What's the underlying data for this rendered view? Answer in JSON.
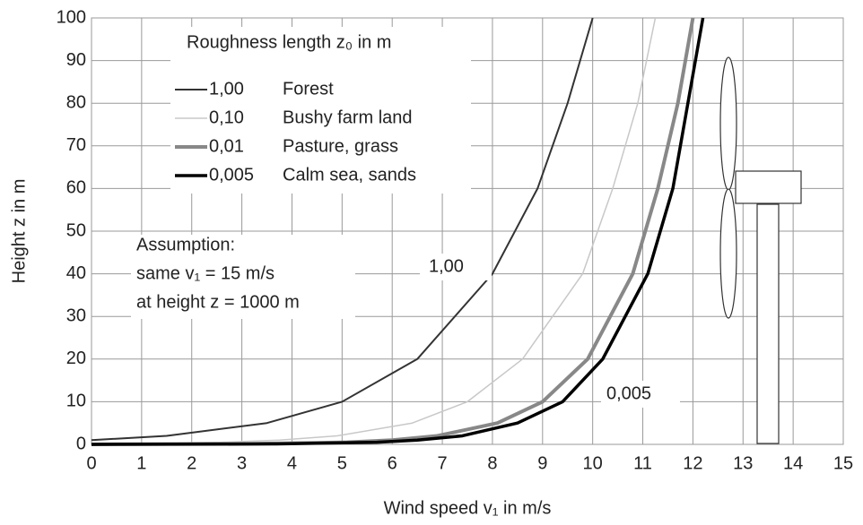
{
  "chart_data": {
    "type": "line",
    "x_label": "Wind speed v₁ in m/s",
    "y_label": "Height z in m",
    "legend_title": "Roughness length z₀ in m",
    "xlim": [
      0,
      15
    ],
    "xticks": [
      0,
      1,
      2,
      3,
      4,
      5,
      6,
      7,
      8,
      9,
      10,
      11,
      12,
      13,
      14,
      15
    ],
    "ylim": [
      0,
      100
    ],
    "yticks": [
      0,
      10,
      20,
      30,
      40,
      50,
      60,
      70,
      80,
      90,
      100
    ],
    "grid": true,
    "series": [
      {
        "name": "1,00",
        "label": "Forest",
        "color": "#333333",
        "line_width": 2,
        "x": [
          0,
          1.5,
          3.5,
          5.0,
          6.5,
          8.0,
          8.9,
          9.5,
          10.0
        ],
        "values": [
          1,
          2,
          5,
          10,
          20,
          40,
          60,
          80,
          100
        ]
      },
      {
        "name": "0,10",
        "label": "Bushy farm land",
        "color": "#c8c8c8",
        "line_width": 1.5,
        "x": [
          0,
          2.6,
          3.75,
          4.9,
          6.4,
          7.5,
          8.6,
          9.8,
          10.4,
          10.9,
          11.25
        ],
        "values": [
          0.1,
          0.5,
          1,
          2,
          5,
          10,
          20,
          40,
          60,
          80,
          100
        ]
      },
      {
        "name": "0,01",
        "label": "Pasture, grass",
        "color": "#888888",
        "line_width": 4,
        "x": [
          0,
          3.0,
          5.1,
          6.0,
          6.9,
          8.1,
          9.0,
          9.9,
          10.8,
          11.3,
          11.7,
          12.0
        ],
        "values": [
          0.01,
          0.1,
          0.5,
          1,
          2,
          5,
          10,
          20,
          40,
          60,
          80,
          100
        ]
      },
      {
        "name": "0,005",
        "label": "Calm sea, sands",
        "color": "#000000",
        "line_width": 3.5,
        "x": [
          0,
          3.7,
          5.7,
          6.5,
          7.4,
          8.5,
          9.4,
          10.2,
          11.1,
          11.6,
          11.9,
          12.2
        ],
        "values": [
          0.005,
          0.1,
          0.5,
          1,
          2,
          5,
          10,
          20,
          40,
          60,
          80,
          100
        ]
      }
    ],
    "annotations": [
      "Assumption:",
      "same v₁ = 15 m/s",
      "at height z = 1000 m"
    ],
    "curve_labels": [
      "1,00",
      "0,005"
    ]
  }
}
